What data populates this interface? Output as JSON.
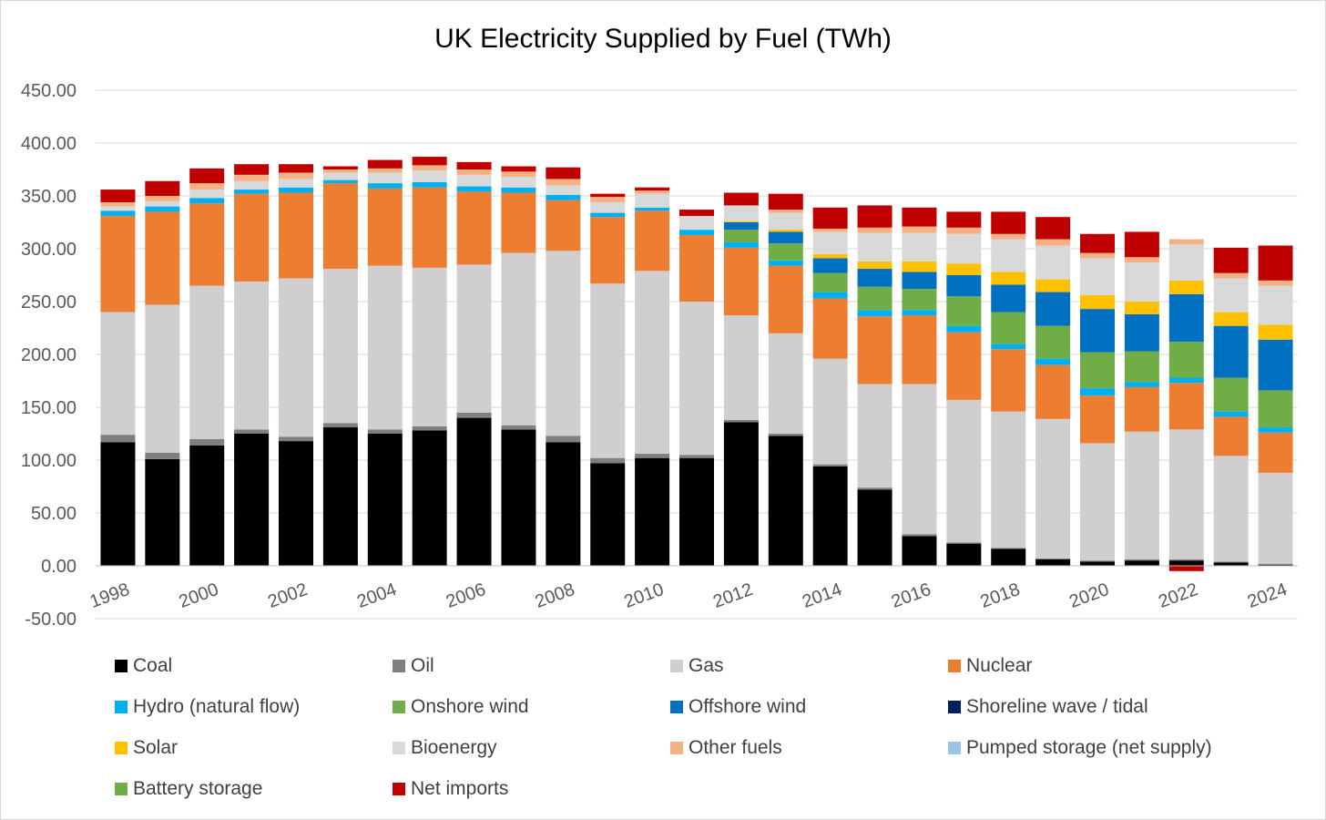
{
  "chart_data": {
    "type": "bar",
    "stacked": true,
    "title": "UK Electricity Supplied by Fuel (TWh)",
    "xlabel": "",
    "ylabel": "",
    "ylim": [
      -50,
      450
    ],
    "yticks": [
      -50,
      0,
      50,
      100,
      150,
      200,
      250,
      300,
      350,
      400,
      450
    ],
    "ytick_labels": [
      "-50.00",
      "0.00",
      "50.00",
      "100.00",
      "150.00",
      "200.00",
      "250.00",
      "300.00",
      "350.00",
      "400.00",
      "450.00"
    ],
    "grid": true,
    "legend_position": "bottom",
    "categories": [
      "1998",
      "1999",
      "2000",
      "2001",
      "2002",
      "2003",
      "2004",
      "2005",
      "2006",
      "2007",
      "2008",
      "2009",
      "2010",
      "2011",
      "2012",
      "2013",
      "2014",
      "2015",
      "2016",
      "2017",
      "2018",
      "2019",
      "2020",
      "2021",
      "2022",
      "2023",
      "2024"
    ],
    "xtick_labels": [
      "1998",
      "",
      "2000",
      "",
      "2002",
      "",
      "2004",
      "",
      "2006",
      "",
      "2008",
      "",
      "2010",
      "",
      "2012",
      "",
      "2014",
      "",
      "2016",
      "",
      "2018",
      "",
      "2020",
      "",
      "2022",
      "",
      "2024"
    ],
    "series": [
      {
        "name": "Coal",
        "color": "#000000",
        "values": [
          117,
          101,
          114,
          125,
          118,
          131,
          125,
          128,
          140,
          129,
          117,
          97,
          102,
          102,
          136,
          123,
          94,
          72,
          28,
          21,
          16,
          6,
          4,
          5,
          5,
          3,
          1
        ]
      },
      {
        "name": "Oil",
        "color": "#7f7f7f",
        "values": [
          7,
          6,
          6,
          4,
          4,
          4,
          4,
          4,
          5,
          4,
          6,
          5,
          4,
          3,
          2,
          2,
          2,
          2,
          2,
          1,
          1,
          1,
          1,
          1,
          1,
          1,
          1
        ]
      },
      {
        "name": "Gas",
        "color": "#d0cece",
        "values": [
          116,
          140,
          145,
          140,
          150,
          146,
          155,
          150,
          140,
          163,
          175,
          165,
          173,
          145,
          99,
          95,
          100,
          98,
          142,
          135,
          129,
          132,
          111,
          121,
          123,
          100,
          86
        ]
      },
      {
        "name": "Nuclear",
        "color": "#ed7d31",
        "values": [
          91,
          88,
          78,
          83,
          81,
          81,
          73,
          76,
          69,
          57,
          48,
          63,
          57,
          63,
          64,
          64,
          57,
          64,
          65,
          64,
          59,
          51,
          45,
          42,
          44,
          37,
          38
        ]
      },
      {
        "name": "Hydro (natural flow)",
        "color": "#00b0f0",
        "values": [
          5,
          5,
          5,
          4,
          5,
          3,
          5,
          5,
          5,
          5,
          5,
          4,
          3,
          5,
          5,
          5,
          6,
          6,
          5,
          6,
          5,
          6,
          7,
          5,
          5,
          5,
          5
        ]
      },
      {
        "name": "Onshore wind",
        "color": "#70ad47",
        "values": [
          0,
          0,
          0,
          0,
          0,
          0,
          0,
          0,
          0,
          0,
          0,
          0,
          0,
          0,
          12,
          16,
          18,
          22,
          20,
          28,
          30,
          31,
          34,
          29,
          34,
          32,
          35
        ]
      },
      {
        "name": "Offshore wind",
        "color": "#0070c0",
        "values": [
          0,
          0,
          0,
          0,
          0,
          0,
          0,
          0,
          0,
          0,
          0,
          0,
          0,
          0,
          7,
          11,
          14,
          17,
          16,
          20,
          26,
          32,
          41,
          35,
          45,
          49,
          48
        ]
      },
      {
        "name": "Shoreline wave / tidal",
        "color": "#002060",
        "values": [
          0,
          0,
          0,
          0,
          0,
          0,
          0,
          0,
          0,
          0,
          0,
          0,
          0,
          0,
          0,
          0,
          0,
          0,
          0,
          0,
          0,
          0,
          0,
          0,
          0,
          0,
          0
        ]
      },
      {
        "name": "Solar",
        "color": "#ffc000",
        "values": [
          0,
          0,
          0,
          0,
          0,
          0,
          0,
          0,
          0,
          0,
          0,
          0,
          0,
          0,
          1,
          2,
          4,
          7,
          10,
          11,
          12,
          12,
          13,
          12,
          13,
          13,
          14
        ]
      },
      {
        "name": "Bioenergy",
        "color": "#d9d9d9",
        "values": [
          4,
          5,
          8,
          8,
          8,
          7,
          10,
          11,
          11,
          10,
          9,
          10,
          13,
          13,
          15,
          16,
          21,
          27,
          27,
          28,
          31,
          32,
          35,
          37,
          34,
          32,
          37
        ]
      },
      {
        "name": "Other fuels",
        "color": "#f4b183",
        "values": [
          4,
          5,
          6,
          6,
          6,
          3,
          4,
          5,
          5,
          5,
          6,
          5,
          3,
          0,
          0,
          3,
          3,
          5,
          6,
          6,
          5,
          6,
          5,
          5,
          5,
          5,
          5
        ]
      },
      {
        "name": "Pumped storage (net supply)",
        "color": "#9dc3e6",
        "values": [
          0,
          0,
          0,
          0,
          0,
          0,
          0,
          0,
          0,
          0,
          0,
          0,
          0,
          0,
          0,
          0,
          0,
          0,
          0,
          0,
          0,
          0,
          0,
          0,
          0,
          0,
          0
        ]
      },
      {
        "name": "Battery storage",
        "color": "#70ad47",
        "values": [
          0,
          0,
          0,
          0,
          0,
          0,
          0,
          0,
          0,
          0,
          0,
          0,
          0,
          0,
          0,
          0,
          0,
          0,
          0,
          0,
          0,
          0,
          0,
          0,
          0,
          0,
          0
        ]
      },
      {
        "name": "Net imports",
        "color": "#c00000",
        "values": [
          12,
          14,
          14,
          10,
          8,
          3,
          8,
          8,
          7,
          5,
          11,
          3,
          3,
          6,
          12,
          15,
          20,
          21,
          18,
          15,
          21,
          21,
          18,
          24,
          -5,
          24,
          33
        ]
      }
    ]
  }
}
